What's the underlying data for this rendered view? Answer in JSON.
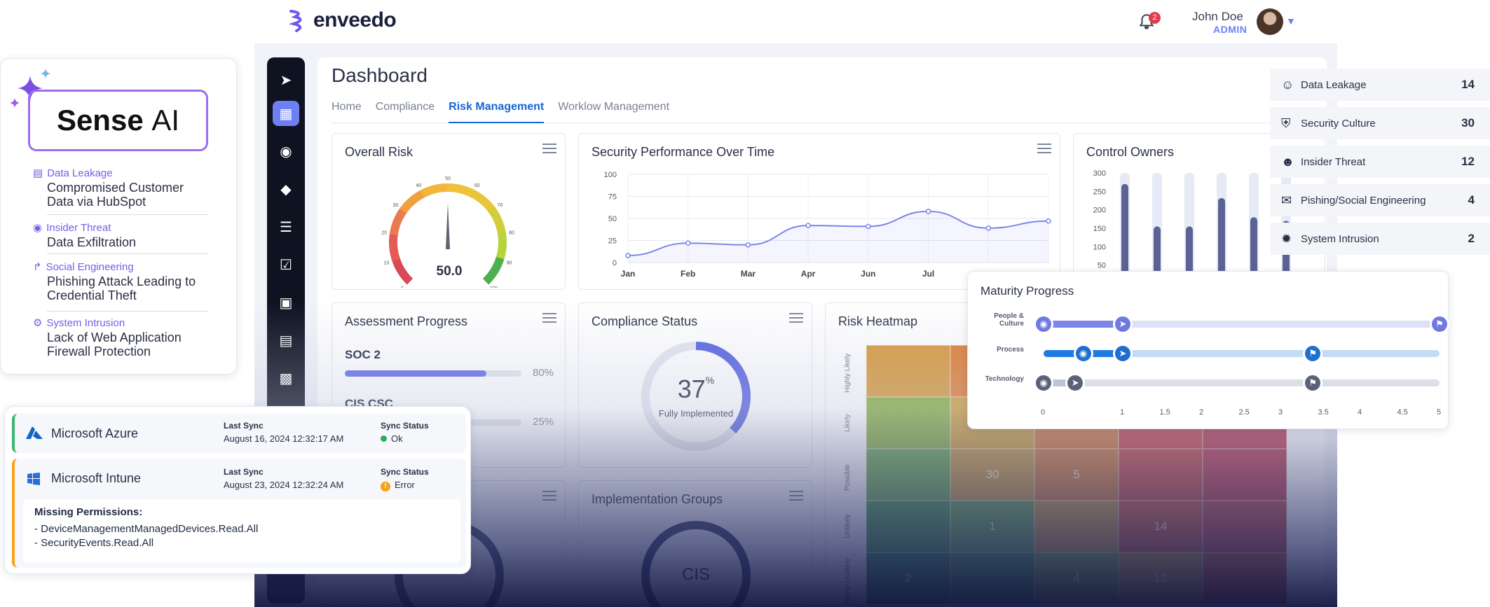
{
  "app": {
    "brand": "enveedo",
    "notifications": "2",
    "user_name": "John Doe",
    "user_role": "ADMIN"
  },
  "dashboard": {
    "title": "Dashboard",
    "tabs": [
      "Home",
      "Compliance",
      "Risk Management",
      "Worklow Management"
    ],
    "active_tab": "Risk Management"
  },
  "overall_risk": {
    "title": "Overall Risk",
    "value": "50.0",
    "ticks": [
      "0",
      "10",
      "20",
      "30",
      "40",
      "50",
      "60",
      "70",
      "80",
      "90",
      "100"
    ]
  },
  "security_perf": {
    "title": "Security Performance Over Time"
  },
  "control_owners": {
    "title": "Control Owners"
  },
  "assessment": {
    "title": "Assessment Progress",
    "items": [
      {
        "name": "SOC 2",
        "pct": "80%",
        "value": 0.8
      },
      {
        "name": "CIS CSC",
        "pct": "25%",
        "value": 0.25
      }
    ]
  },
  "compliance": {
    "title": "Compliance Status",
    "value": "37",
    "unit": "%",
    "label": "Fully Implemented"
  },
  "heatmap": {
    "title": "Risk Heatmap",
    "rows": [
      "Highly Likely",
      "Likely",
      "Possible",
      "Unlikely",
      "Highly Unlikely"
    ],
    "cells": [
      [
        "",
        "",
        "",
        "",
        ""
      ],
      [
        "",
        "",
        "",
        "",
        ""
      ],
      [
        "",
        "30",
        "5",
        "",
        ""
      ],
      [
        "",
        "1",
        "",
        "14",
        ""
      ],
      [
        "2",
        "",
        "4",
        "12",
        ""
      ]
    ]
  },
  "impl_groups": {
    "title": "Implementation Groups",
    "center": "CIS"
  },
  "sense_ai": {
    "brand_a": "Sense",
    "brand_b": "AI",
    "items": [
      {
        "category": "Data Leakage",
        "desc": "Compromised Customer Data via HubSpot"
      },
      {
        "category": "Insider Threat",
        "desc": "Data Exfiltration"
      },
      {
        "category": "Social Engineering",
        "desc": "Phishing Attack Leading to Credential Theft"
      },
      {
        "category": "System Intrusion",
        "desc": "Lack of Web Application Firewall Protection"
      }
    ]
  },
  "sync": {
    "last_sync_label": "Last Sync",
    "status_label": "Sync Status",
    "rows": [
      {
        "name": "Microsoft Azure",
        "date": "August 16, 2024 12:32:17 AM",
        "status": "Ok",
        "status_color": "#2eaa5c",
        "accent": "#3cb371"
      },
      {
        "name": "Microsoft Intune",
        "date": "August 23, 2024 12:32:24 AM",
        "status": "Error",
        "status_color": "#f2a51a",
        "accent": "#f2a51a"
      }
    ],
    "missing_title": "Missing Permissions:",
    "missing": [
      "- DeviceManagementManagedDevices.Read.All",
      "- SecurityEvents.Read.All"
    ]
  },
  "incidents": [
    {
      "name": "Data Leakage",
      "count": "14",
      "icon": "user-alert-icon"
    },
    {
      "name": "Security Culture",
      "count": "30",
      "icon": "shield-user-icon"
    },
    {
      "name": "Insider Threat",
      "count": "12",
      "icon": "devil-face-icon"
    },
    {
      "name": "Pishing/Social Engineering",
      "count": "4",
      "icon": "mail-alert-icon"
    },
    {
      "name": "System Intrusion",
      "count": "2",
      "icon": "bug-icon"
    }
  ],
  "maturity": {
    "title": "Maturity Progress",
    "rows": [
      "People & Culture",
      "Process",
      "Technology"
    ],
    "ticks": [
      "0",
      "1",
      "1.5",
      "2",
      "2.5",
      "3",
      "3.5",
      "4",
      "4.5",
      "5"
    ]
  },
  "chart_data": [
    {
      "type": "line",
      "title": "Security Performance Over Time",
      "categories": [
        "Jan",
        "Feb",
        "Mar",
        "Apr",
        "Jun",
        "Jul"
      ],
      "x": [
        "Jan",
        "Feb",
        "Mar",
        "Apr",
        "Jun",
        "Jul",
        "",
        ""
      ],
      "values": [
        8,
        22,
        20,
        42,
        41,
        58,
        39,
        47
      ],
      "ylim": [
        0,
        100
      ],
      "yticks": [
        0,
        25,
        50,
        75,
        100
      ]
    },
    {
      "type": "bar",
      "title": "Control Owners",
      "values": [
        270,
        155,
        155,
        232,
        180,
        170
      ],
      "ylim": [
        0,
        300
      ],
      "yticks": [
        0,
        50,
        100,
        150,
        200,
        250,
        300
      ]
    },
    {
      "type": "bar",
      "title": "Maturity Progress",
      "series": [
        {
          "name": "People & Culture",
          "current": 1.0,
          "target": 5.0
        },
        {
          "name": "Process",
          "current": 1.0,
          "target": 3.4
        },
        {
          "name": "Technology",
          "current": 0.4,
          "target": 3.4
        }
      ],
      "xlim": [
        0,
        5
      ]
    }
  ]
}
